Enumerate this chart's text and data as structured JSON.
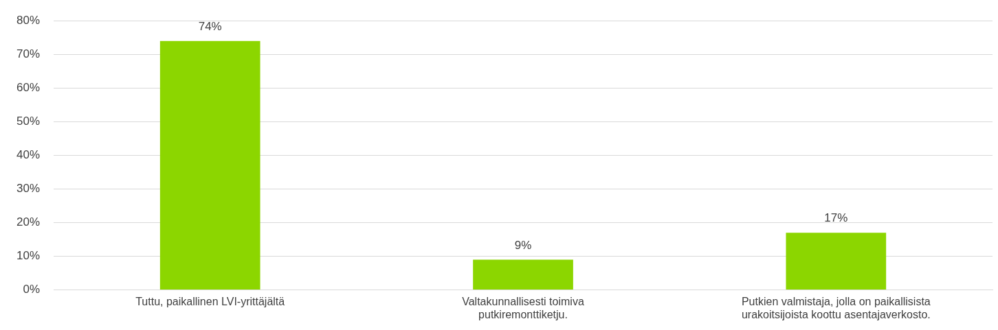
{
  "chart_data": {
    "type": "bar",
    "categories": [
      "Tuttu, paikallinen LVI-yrittäjältä",
      "Valtakunnallisesti toimiva putkiremonttiketju.",
      "Putkien valmistaja, jolla on paikallisista urakoitsijoista koottu asentajaverkosto."
    ],
    "values": [
      74,
      9,
      17
    ],
    "value_labels": [
      "74%",
      "9%",
      "17%"
    ],
    "color": "#8cd600",
    "ylim": [
      0,
      80
    ],
    "yticks": [
      {
        "value": 0,
        "label": "0%"
      },
      {
        "value": 10,
        "label": "10%"
      },
      {
        "value": 20,
        "label": "20%"
      },
      {
        "value": 30,
        "label": "30%"
      },
      {
        "value": 40,
        "label": "40%"
      },
      {
        "value": 50,
        "label": "50%"
      },
      {
        "value": 60,
        "label": "60%"
      },
      {
        "value": 70,
        "label": "70%"
      },
      {
        "value": 80,
        "label": "80%"
      }
    ],
    "grid": "y",
    "legend": false
  }
}
